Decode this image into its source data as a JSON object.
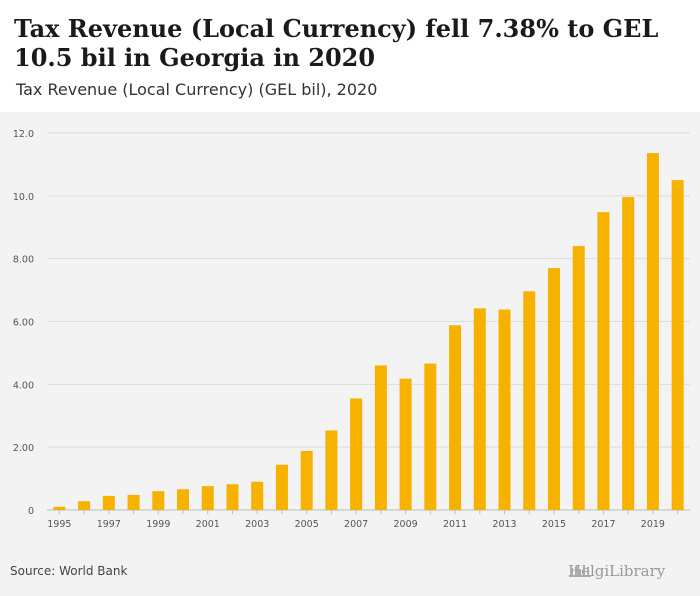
{
  "header": {
    "title": "Tax Revenue (Local Currency) fell 7.38% to GEL 10.5 bil in Georgia in 2020",
    "subtitle": "Tax Revenue (Local Currency) (GEL bil), 2020"
  },
  "footer": {
    "source": "Source: World Bank",
    "brand": "HelgiLibrary"
  },
  "colors": {
    "bar": "#f7b200",
    "grid": "#dcdcdc",
    "axis_text": "#555555"
  },
  "chart_data": {
    "type": "bar",
    "categories": [
      "1995",
      "1996",
      "1997",
      "1998",
      "1999",
      "2000",
      "2001",
      "2002",
      "2003",
      "2004",
      "2005",
      "2006",
      "2007",
      "2008",
      "2009",
      "2010",
      "2011",
      "2012",
      "2013",
      "2014",
      "2015",
      "2016",
      "2017",
      "2018",
      "2019",
      "2020"
    ],
    "x_tick_labels": [
      "1995",
      "1997",
      "1999",
      "2001",
      "2003",
      "2005",
      "2007",
      "2009",
      "2011",
      "2013",
      "2015",
      "2017",
      "2019"
    ],
    "values": [
      0.1,
      0.28,
      0.45,
      0.48,
      0.6,
      0.66,
      0.76,
      0.82,
      0.9,
      1.44,
      1.88,
      2.53,
      3.55,
      4.6,
      4.18,
      4.66,
      5.88,
      6.42,
      6.38,
      6.96,
      7.7,
      8.4,
      9.48,
      9.96,
      11.36,
      10.5
    ],
    "ylim": [
      0,
      12
    ],
    "y_ticks": [
      0,
      2,
      4,
      6,
      8,
      10,
      12
    ],
    "y_tick_labels": [
      "0",
      "2.00",
      "4.00",
      "6.00",
      "8.00",
      "10.0",
      "12.0"
    ],
    "grid": true,
    "legend": "none"
  }
}
